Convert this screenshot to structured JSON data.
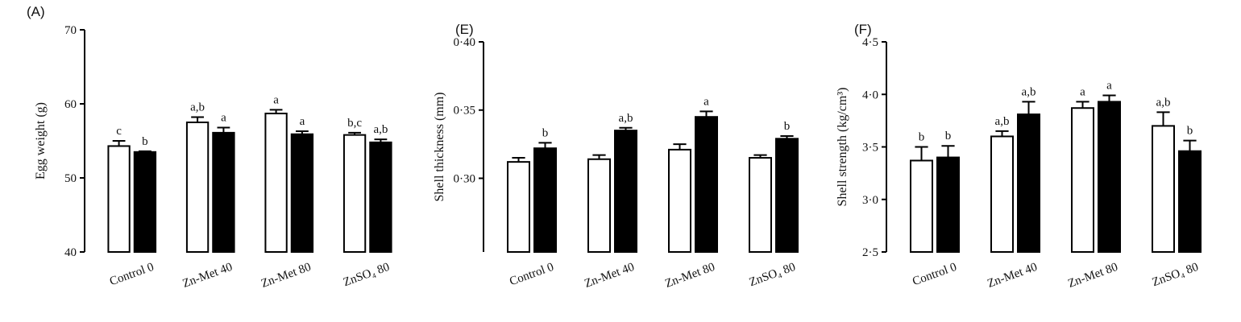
{
  "chart_data": [
    {
      "type": "bar",
      "title": "(A)",
      "y_label": "Egg weight (g)",
      "categories": [
        "Control  0",
        "Zn-Met  40",
        "Zn-Met  80",
        "ZnSO₄  80"
      ],
      "series": [
        {
          "color": "#ffffff",
          "values": [
            54.3,
            57.5,
            58.7,
            55.8
          ],
          "errors": [
            0.7,
            0.7,
            0.5,
            0.3
          ],
          "letters": [
            "c",
            "a,b",
            "a",
            "b,c"
          ]
        },
        {
          "color": "#000000",
          "values": [
            53.5,
            56.1,
            55.9,
            54.8
          ],
          "errors": [
            0.1,
            0.7,
            0.4,
            0.4
          ],
          "letters": [
            "b",
            "a",
            "a",
            "a,b"
          ]
        }
      ],
      "ylim": [
        40,
        70
      ],
      "yticks": [
        40,
        50,
        60,
        70
      ]
    },
    {
      "type": "bar",
      "title": "(E)",
      "y_label": "Shell thickness (mm)",
      "categories": [
        "Control  0",
        "Zn-Met  40",
        "Zn-Met  80",
        "ZnSO₄  80"
      ],
      "series": [
        {
          "color": "#ffffff",
          "values": [
            0.312,
            0.314,
            0.321,
            0.315
          ],
          "errors": [
            0.003,
            0.003,
            0.004,
            0.002
          ]
        },
        {
          "color": "#000000",
          "values": [
            0.322,
            0.335,
            0.345,
            0.329
          ],
          "errors": [
            0.004,
            0.002,
            0.004,
            0.002
          ],
          "letters": [
            "b",
            "a,b",
            "a",
            "b"
          ]
        }
      ],
      "ylim": [
        0.246,
        0.4
      ],
      "yticks": [
        {
          "value": 0.3,
          "label": "0·30"
        },
        {
          "value": 0.35,
          "label": "0·35"
        },
        {
          "value": 0.4,
          "label": "0·40"
        }
      ]
    },
    {
      "type": "bar",
      "title": "(F)",
      "y_label": "Shell strength (kg/cm³)",
      "categories": [
        "Control  0",
        "Zn-Met  40",
        "Zn-Met  80",
        "ZnSO₄  80"
      ],
      "series": [
        {
          "color": "#ffffff",
          "values": [
            3.37,
            3.6,
            3.87,
            3.7
          ],
          "errors": [
            0.13,
            0.05,
            0.06,
            0.13
          ],
          "letters": [
            "b",
            "a,b",
            "a",
            "a,b"
          ]
        },
        {
          "color": "#000000",
          "values": [
            3.4,
            3.81,
            3.93,
            3.46
          ],
          "errors": [
            0.11,
            0.12,
            0.06,
            0.1
          ],
          "letters": [
            "b",
            "a,b",
            "a",
            "b"
          ]
        }
      ],
      "ylim": [
        2.5,
        4.5
      ],
      "yticks": [
        {
          "value": 2.5,
          "label": "2·5"
        },
        {
          "value": 3.0,
          "label": "3·0"
        },
        {
          "value": 3.5,
          "label": "3·5"
        },
        {
          "value": 4.0,
          "label": "4·0"
        },
        {
          "value": 4.5,
          "label": "4·5"
        }
      ]
    }
  ]
}
